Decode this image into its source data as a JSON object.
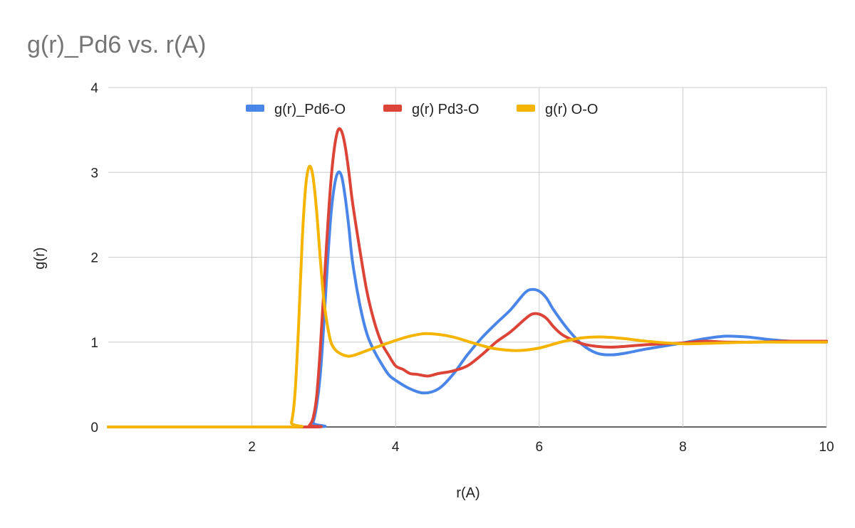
{
  "chart_data": {
    "type": "line",
    "title": "g(r)_Pd6 vs. r(A)",
    "xlabel": "r(A)",
    "ylabel": "g(r)",
    "xlim": [
      0,
      10
    ],
    "ylim": [
      0,
      4
    ],
    "x_ticks": [
      2,
      4,
      6,
      8,
      10
    ],
    "y_ticks": [
      0,
      1,
      2,
      3,
      4
    ],
    "grid": true,
    "legend_position": "top",
    "series": [
      {
        "name": "g(r)_Pd6-O",
        "color": "#4a86e8",
        "x": [
          0,
          2.8,
          2.85,
          2.9,
          2.95,
          3.0,
          3.05,
          3.1,
          3.15,
          3.2,
          3.25,
          3.3,
          3.35,
          3.4,
          3.5,
          3.6,
          3.7,
          3.8,
          3.9,
          4.0,
          4.2,
          4.4,
          4.6,
          4.8,
          5.0,
          5.2,
          5.4,
          5.6,
          5.8,
          5.9,
          6.0,
          6.1,
          6.2,
          6.4,
          6.6,
          6.8,
          7.0,
          7.2,
          7.5,
          8.0,
          8.3,
          8.6,
          8.9,
          9.2,
          9.5,
          10.0
        ],
        "y": [
          0,
          0,
          0.05,
          0.25,
          0.6,
          1.2,
          1.9,
          2.5,
          2.85,
          3.0,
          2.95,
          2.7,
          2.35,
          1.95,
          1.45,
          1.1,
          0.9,
          0.75,
          0.62,
          0.55,
          0.45,
          0.4,
          0.45,
          0.62,
          0.85,
          1.05,
          1.22,
          1.38,
          1.58,
          1.62,
          1.6,
          1.52,
          1.38,
          1.15,
          0.97,
          0.87,
          0.85,
          0.87,
          0.92,
          0.99,
          1.04,
          1.07,
          1.06,
          1.03,
          1.01,
          1.0
        ]
      },
      {
        "name": "g(r) Pd3-O",
        "color": "#db4437",
        "x": [
          0,
          2.75,
          2.8,
          2.85,
          2.9,
          2.95,
          3.0,
          3.05,
          3.1,
          3.15,
          3.2,
          3.25,
          3.3,
          3.35,
          3.4,
          3.5,
          3.6,
          3.7,
          3.8,
          3.9,
          4.0,
          4.1,
          4.2,
          4.3,
          4.45,
          4.6,
          4.8,
          5.0,
          5.2,
          5.4,
          5.6,
          5.8,
          5.9,
          6.0,
          6.1,
          6.2,
          6.3,
          6.4,
          6.6,
          6.8,
          7.0,
          7.2,
          7.5,
          8.0,
          8.3,
          8.6,
          9.0,
          9.4,
          9.7,
          10.0
        ],
        "y": [
          0,
          0,
          0.02,
          0.1,
          0.35,
          0.9,
          1.6,
          2.3,
          2.9,
          3.3,
          3.5,
          3.48,
          3.3,
          3.0,
          2.65,
          2.1,
          1.6,
          1.25,
          1.0,
          0.85,
          0.72,
          0.68,
          0.63,
          0.62,
          0.6,
          0.63,
          0.66,
          0.72,
          0.85,
          1.0,
          1.12,
          1.27,
          1.33,
          1.33,
          1.28,
          1.18,
          1.1,
          1.05,
          0.98,
          0.95,
          0.94,
          0.95,
          0.97,
          0.99,
          1.01,
          1.0,
          1.0,
          1.01,
          1.01,
          1.01
        ]
      },
      {
        "name": "g(r) O-O",
        "color": "#f4b400",
        "x": [
          0,
          2.5,
          2.55,
          2.6,
          2.65,
          2.7,
          2.75,
          2.8,
          2.85,
          2.9,
          2.95,
          3.0,
          3.05,
          3.1,
          3.15,
          3.2,
          3.3,
          3.4,
          3.6,
          3.8,
          4.0,
          4.2,
          4.4,
          4.6,
          4.8,
          5.0,
          5.2,
          5.4,
          5.7,
          6.0,
          6.3,
          6.6,
          6.9,
          7.2,
          7.5,
          8.0,
          8.5,
          9.0,
          9.5,
          10.0
        ],
        "y": [
          0,
          0,
          0.05,
          0.4,
          1.2,
          2.2,
          2.85,
          3.07,
          2.95,
          2.55,
          2.0,
          1.5,
          1.2,
          1.0,
          0.92,
          0.88,
          0.84,
          0.84,
          0.9,
          0.96,
          1.02,
          1.07,
          1.1,
          1.09,
          1.06,
          1.01,
          0.96,
          0.92,
          0.9,
          0.93,
          1.0,
          1.05,
          1.06,
          1.04,
          1.01,
          0.98,
          0.99,
          1.0,
          1.0,
          1.0
        ]
      }
    ]
  }
}
